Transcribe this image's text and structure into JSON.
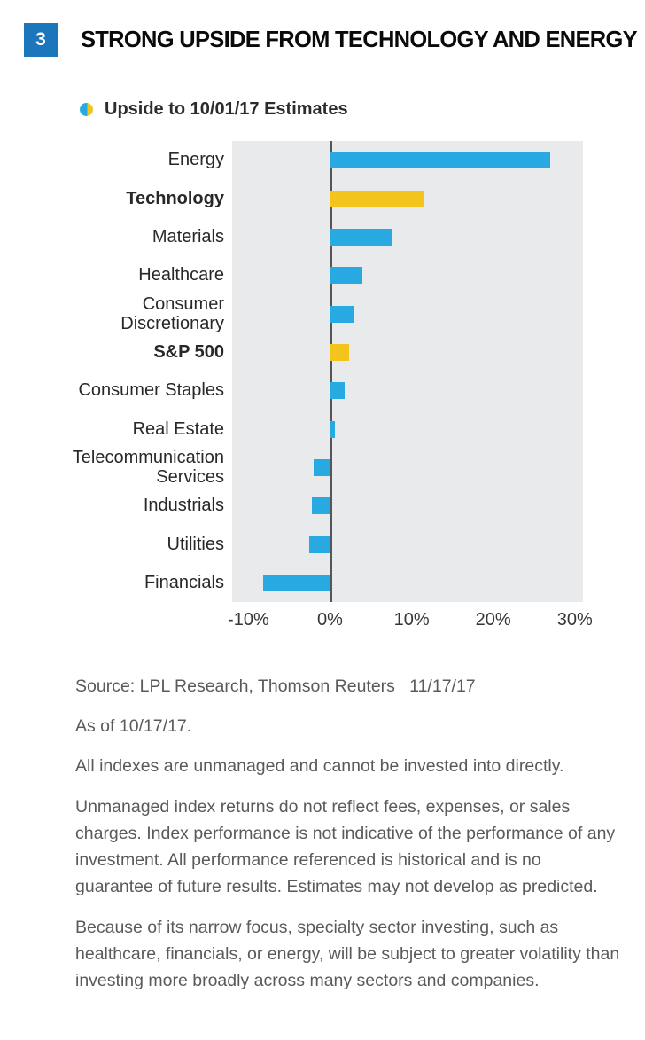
{
  "header": {
    "number": "3",
    "title": "STRONG UPSIDE FROM TECHNOLOGY AND ENERGY",
    "badge_color": "#1B76BC"
  },
  "legend": {
    "label": "Upside to 10/01/17 Estimates"
  },
  "chart_data": {
    "type": "bar",
    "orientation": "horizontal",
    "title": "Upside to 10/01/17 Estimates",
    "xlabel": "",
    "ylabel": "",
    "xlim": [
      -10,
      30
    ],
    "grid": false,
    "legend_position": "top-left",
    "categories": [
      "Energy",
      "Technology",
      "Materials",
      "Healthcare",
      "Consumer Discretionary",
      "S&P 500",
      "Consumer Staples",
      "Real Estate",
      "Telecommunication Services",
      "Industrials",
      "Utilities",
      "Financials"
    ],
    "values": [
      27,
      11.5,
      7.5,
      4,
      3,
      2.3,
      1.8,
      0.6,
      -2,
      -2.2,
      -2.5,
      -8.2
    ],
    "series": [
      {
        "category": "Energy",
        "value": 27,
        "emphasis": false
      },
      {
        "category": "Technology",
        "value": 11.5,
        "emphasis": true
      },
      {
        "category": "Materials",
        "value": 7.5,
        "emphasis": false
      },
      {
        "category": "Healthcare",
        "value": 4,
        "emphasis": false
      },
      {
        "category": "Consumer Discretionary",
        "value": 3,
        "emphasis": false
      },
      {
        "category": "S&P 500",
        "value": 2.3,
        "emphasis": true
      },
      {
        "category": "Consumer Staples",
        "value": 1.8,
        "emphasis": false
      },
      {
        "category": "Real Estate",
        "value": 0.6,
        "emphasis": false
      },
      {
        "category": "Telecommunication Services",
        "value": -2,
        "emphasis": false
      },
      {
        "category": "Industrials",
        "value": -2.2,
        "emphasis": false
      },
      {
        "category": "Utilities",
        "value": -2.5,
        "emphasis": false
      },
      {
        "category": "Financials",
        "value": -8.2,
        "emphasis": false
      }
    ],
    "x_ticks": [
      {
        "value": -10,
        "label": "-10%"
      },
      {
        "value": 0,
        "label": "0%"
      },
      {
        "value": 10,
        "label": "10%"
      },
      {
        "value": 20,
        "label": "20%"
      },
      {
        "value": 30,
        "label": "30%"
      }
    ],
    "colors": {
      "bar_default": "#29A9E1",
      "bar_emphasis": "#F2C41C",
      "plot_background": "#E9EAEC",
      "zero_line": "#55565A"
    }
  },
  "footnotes": [
    "Source: LPL Research, Thomson Reuters   11/17/17",
    "As of 10/17/17.",
    "All indexes are unmanaged and cannot be invested into directly.",
    "Unmanaged index returns do not reflect fees, expenses, or sales charges. Index performance is not indicative of the performance of any investment. All performance referenced is historical and is no guarantee of future results. Estimates may not develop as predicted.",
    "Because of its narrow focus, specialty sector investing, such as healthcare, financials, or energy, will be subject to greater volatility than investing more broadly across many sectors and companies."
  ]
}
